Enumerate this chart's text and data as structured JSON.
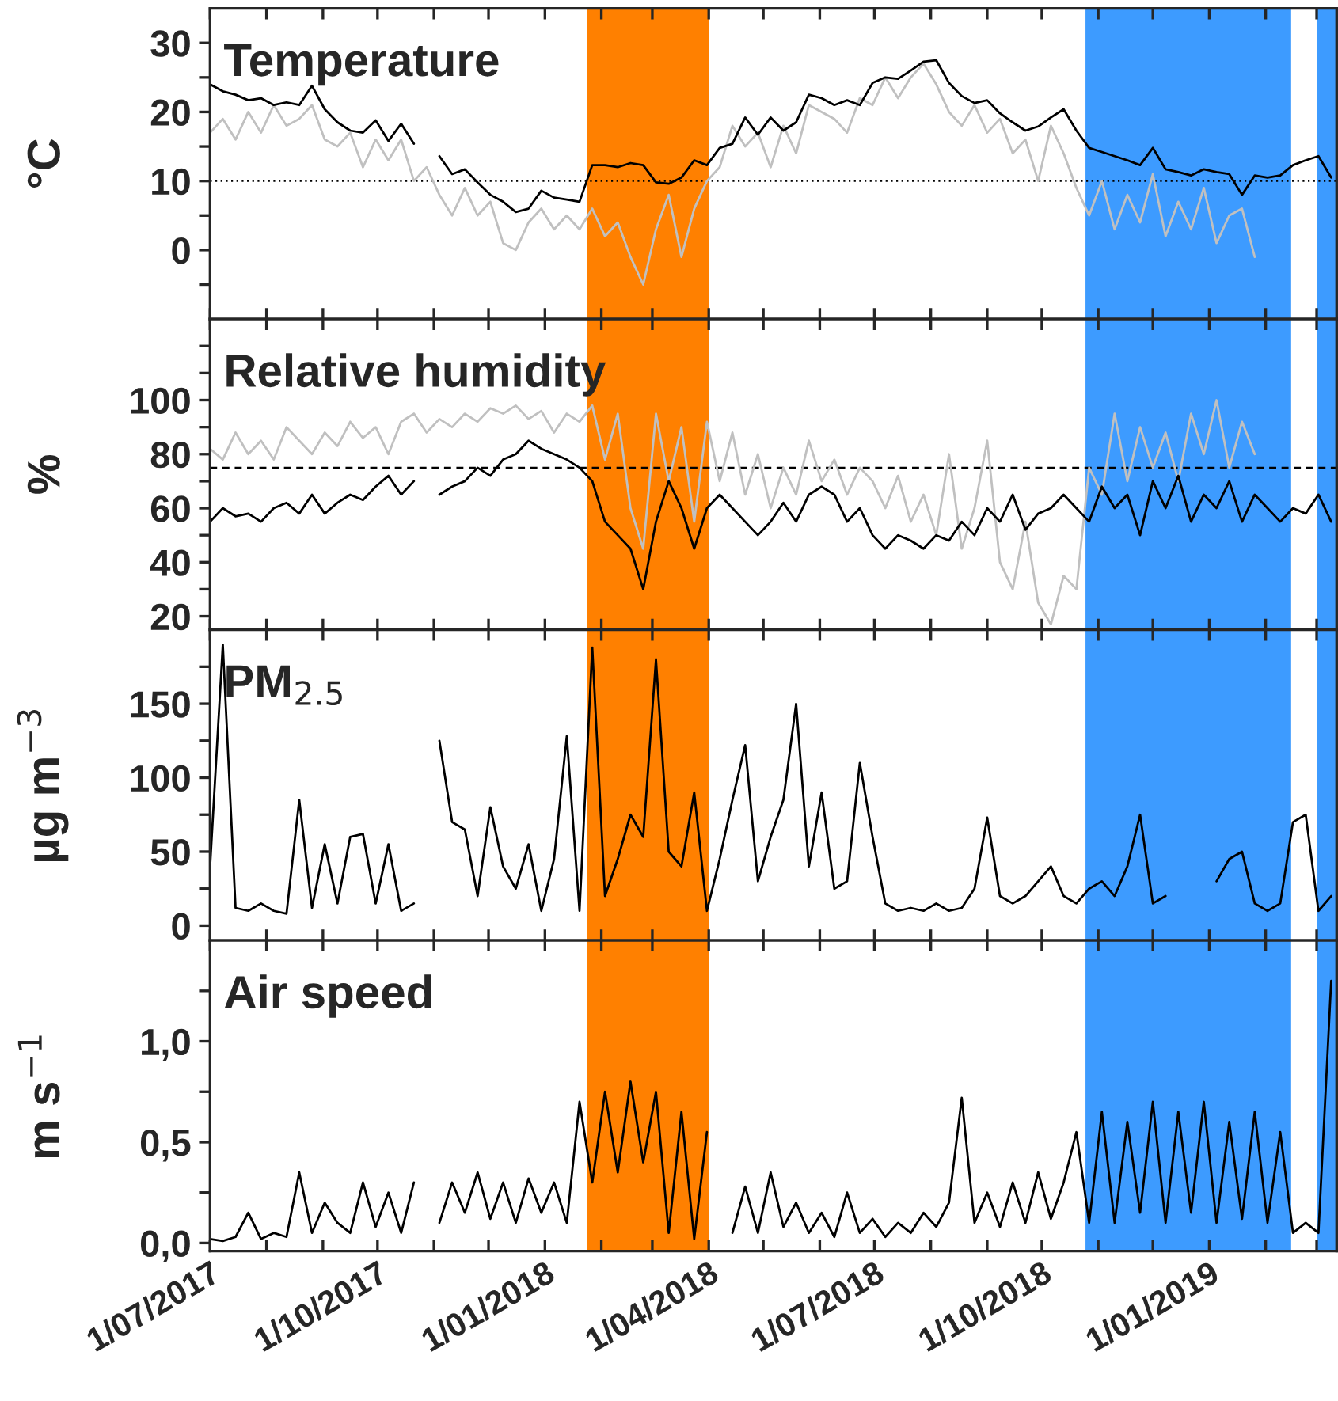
{
  "chart_data": [
    {
      "type": "line",
      "title": "Temperature",
      "ylabel": "°C",
      "x": [
        "2017-07-01",
        "2017-07-08",
        "2017-07-15",
        "2017-07-22",
        "2017-07-29",
        "2017-08-05",
        "2017-08-12",
        "2017-08-19",
        "2017-08-26",
        "2017-09-02",
        "2017-09-09",
        "2017-09-16",
        "2017-09-23",
        "2017-09-30",
        "2017-10-07",
        "2017-10-14",
        "2017-10-21",
        "2017-10-28",
        "2017-11-04",
        "2017-11-11",
        "2017-11-18",
        "2017-11-25",
        "2017-12-02",
        "2017-12-09",
        "2017-12-16",
        "2017-12-23",
        "2017-12-30",
        "2018-01-06",
        "2018-01-13",
        "2018-01-20",
        "2018-01-27",
        "2018-02-03",
        "2018-02-10",
        "2018-02-17",
        "2018-02-24",
        "2018-03-03",
        "2018-03-10",
        "2018-03-17",
        "2018-03-24",
        "2018-03-31",
        "2018-04-07",
        "2018-04-14",
        "2018-04-21",
        "2018-04-28",
        "2018-05-05",
        "2018-05-12",
        "2018-05-19",
        "2018-05-26",
        "2018-06-02",
        "2018-06-09",
        "2018-06-16",
        "2018-06-23",
        "2018-06-30",
        "2018-07-07",
        "2018-07-14",
        "2018-07-21",
        "2018-07-28",
        "2018-08-04",
        "2018-08-11",
        "2018-08-18",
        "2018-08-25",
        "2018-09-01",
        "2018-09-08",
        "2018-09-15",
        "2018-09-22",
        "2018-09-29",
        "2018-10-06",
        "2018-10-13",
        "2018-10-20",
        "2018-10-27",
        "2018-11-03",
        "2018-11-10",
        "2018-11-17",
        "2018-11-24",
        "2018-12-01",
        "2018-12-08",
        "2018-12-15",
        "2018-12-22",
        "2018-12-29",
        "2019-01-05",
        "2019-01-12",
        "2019-01-19",
        "2019-01-26",
        "2019-02-02",
        "2019-02-09",
        "2019-02-16",
        "2019-02-23",
        "2019-03-02",
        "2019-03-09"
      ],
      "series": [
        {
          "color": "#c0c0c0",
          "values": [
            17,
            19,
            16,
            20,
            17,
            21,
            18,
            19,
            21,
            16,
            15,
            17,
            12,
            16,
            13,
            16,
            10,
            12,
            8,
            5,
            9,
            5,
            7,
            1,
            0,
            4,
            6,
            3,
            5,
            3,
            6,
            2,
            4,
            -1,
            -5,
            3,
            8,
            -1,
            6,
            10,
            12,
            18,
            15,
            17,
            12,
            18,
            14,
            21,
            20,
            19,
            17,
            22,
            21,
            25,
            22,
            25,
            27,
            24,
            20,
            18,
            21,
            17,
            19,
            14,
            16,
            10,
            18,
            14,
            9,
            5,
            10,
            3,
            8,
            4,
            11,
            2,
            7,
            3,
            9,
            1,
            5,
            6,
            -1,
            null,
            null,
            null,
            null,
            null,
            null
          ]
        },
        {
          "color": "#000000",
          "values": [
            24,
            23,
            22.5,
            21.7,
            22,
            21,
            21.4,
            21,
            23.8,
            20.4,
            18.5,
            17.3,
            17,
            18.8,
            15.8,
            18.3,
            15.4,
            null,
            13.6,
            11,
            11.7,
            9.8,
            8,
            7,
            5.5,
            6,
            8.6,
            7.6,
            7.3,
            7,
            12.3,
            12.3,
            12,
            12.6,
            12.3,
            9.8,
            9.6,
            10.5,
            13,
            12.3,
            14.8,
            15.4,
            19.2,
            16.7,
            19.2,
            17.3,
            18.5,
            22.5,
            22,
            21,
            21.7,
            21,
            24.2,
            25,
            24.8,
            26,
            27.3,
            27.5,
            24.2,
            22.3,
            21.3,
            21.7,
            19.8,
            18.5,
            17.3,
            17.9,
            19.2,
            20.4,
            17.3,
            14.8,
            14.2,
            13.6,
            13,
            12.3,
            14.8,
            11.7,
            11.3,
            10.8,
            11.7,
            11.3,
            11,
            8,
            10.8,
            10.5,
            10.8,
            12.3,
            13,
            13.6,
            10.5
          ]
        }
      ],
      "ylim": [
        -10,
        35
      ],
      "yticks": [
        {
          "value": -5,
          "label": null
        },
        0,
        {
          "value": 5,
          "label": null
        },
        10,
        {
          "value": 15,
          "label": null
        },
        20,
        {
          "value": 25,
          "label": null
        },
        30
      ],
      "xlim": [
        "2017-07-01",
        "2019-03-12"
      ],
      "xticks": [
        {
          "value": "2017-07-01",
          "label": null
        },
        {
          "value": "2017-08-01",
          "label": null
        },
        {
          "value": "2017-09-01",
          "label": null
        },
        {
          "value": "2017-10-01",
          "label": null
        },
        {
          "value": "2017-11-01",
          "label": null
        },
        {
          "value": "2017-12-01",
          "label": null
        },
        {
          "value": "2018-01-01",
          "label": null
        },
        {
          "value": "2018-02-01",
          "label": null
        },
        {
          "value": "2018-03-01",
          "label": null
        },
        {
          "value": "2018-04-01",
          "label": null
        },
        {
          "value": "2018-05-01",
          "label": null
        },
        {
          "value": "2018-06-01",
          "label": null
        },
        {
          "value": "2018-07-01",
          "label": null
        },
        {
          "value": "2018-08-01",
          "label": null
        },
        {
          "value": "2018-09-01",
          "label": null
        },
        {
          "value": "2018-10-01",
          "label": null
        },
        {
          "value": "2018-11-01",
          "label": null
        },
        {
          "value": "2018-12-01",
          "label": null
        },
        {
          "value": "2019-01-01",
          "label": null
        },
        {
          "value": "2019-02-01",
          "label": null
        },
        {
          "value": "2019-03-01",
          "label": null
        }
      ],
      "tick_labels": "y",
      "ref_lines": [
        {
          "axis": "y",
          "value": 10,
          "color": "#000000",
          "line_style": "dotted"
        }
      ],
      "bands": [
        {
          "axis": "x",
          "from": "2018-01-24",
          "to": "2018-04-01",
          "color": "#ff8000"
        },
        {
          "axis": "x",
          "from": "2018-10-25",
          "to": "2019-02-15",
          "color": "#3d9bff"
        },
        {
          "axis": "x",
          "from": "2019-03-01",
          "to": "2019-03-12",
          "color": "#3d9bff"
        }
      ],
      "grid": false,
      "legend": false
    },
    {
      "type": "line",
      "title": "Relative humidity",
      "ylabel": "%",
      "x": [
        "2017-07-01",
        "2017-07-08",
        "2017-07-15",
        "2017-07-22",
        "2017-07-29",
        "2017-08-05",
        "2017-08-12",
        "2017-08-19",
        "2017-08-26",
        "2017-09-02",
        "2017-09-09",
        "2017-09-16",
        "2017-09-23",
        "2017-09-30",
        "2017-10-07",
        "2017-10-14",
        "2017-10-21",
        "2017-10-28",
        "2017-11-04",
        "2017-11-11",
        "2017-11-18",
        "2017-11-25",
        "2017-12-02",
        "2017-12-09",
        "2017-12-16",
        "2017-12-23",
        "2017-12-30",
        "2018-01-06",
        "2018-01-13",
        "2018-01-20",
        "2018-01-27",
        "2018-02-03",
        "2018-02-10",
        "2018-02-17",
        "2018-02-24",
        "2018-03-03",
        "2018-03-10",
        "2018-03-17",
        "2018-03-24",
        "2018-03-31",
        "2018-04-07",
        "2018-04-14",
        "2018-04-21",
        "2018-04-28",
        "2018-05-05",
        "2018-05-12",
        "2018-05-19",
        "2018-05-26",
        "2018-06-02",
        "2018-06-09",
        "2018-06-16",
        "2018-06-23",
        "2018-06-30",
        "2018-07-07",
        "2018-07-14",
        "2018-07-21",
        "2018-07-28",
        "2018-08-04",
        "2018-08-11",
        "2018-08-18",
        "2018-08-25",
        "2018-09-01",
        "2018-09-08",
        "2018-09-15",
        "2018-09-22",
        "2018-09-29",
        "2018-10-06",
        "2018-10-13",
        "2018-10-20",
        "2018-10-27",
        "2018-11-03",
        "2018-11-10",
        "2018-11-17",
        "2018-11-24",
        "2018-12-01",
        "2018-12-08",
        "2018-12-15",
        "2018-12-22",
        "2018-12-29",
        "2019-01-05",
        "2019-01-12",
        "2019-01-19",
        "2019-01-26",
        "2019-02-02",
        "2019-02-09",
        "2019-02-16",
        "2019-02-23",
        "2019-03-02",
        "2019-03-09"
      ],
      "series": [
        {
          "color": "#c0c0c0",
          "values": [
            82,
            78,
            88,
            80,
            85,
            78,
            90,
            85,
            80,
            88,
            83,
            92,
            86,
            90,
            80,
            92,
            95,
            88,
            93,
            90,
            95,
            92,
            97,
            95,
            98,
            93,
            96,
            88,
            95,
            92,
            98,
            78,
            95,
            60,
            45,
            95,
            70,
            90,
            55,
            92,
            70,
            88,
            65,
            80,
            60,
            75,
            65,
            85,
            70,
            78,
            65,
            75,
            70,
            60,
            72,
            55,
            65,
            50,
            80,
            45,
            60,
            85,
            40,
            30,
            55,
            25,
            17,
            35,
            30,
            75,
            65,
            95,
            70,
            90,
            75,
            88,
            70,
            95,
            80,
            100,
            75,
            92,
            80,
            null,
            null,
            null,
            null,
            null,
            null
          ]
        },
        {
          "color": "#000000",
          "values": [
            55,
            60,
            57,
            58,
            55,
            60,
            62,
            58,
            65,
            58,
            62,
            65,
            63,
            68,
            72,
            65,
            70,
            null,
            65,
            68,
            70,
            75,
            72,
            78,
            80,
            85,
            82,
            80,
            78,
            75,
            70,
            55,
            50,
            45,
            30,
            55,
            70,
            60,
            45,
            60,
            65,
            60,
            55,
            50,
            55,
            62,
            55,
            65,
            68,
            65,
            55,
            60,
            50,
            45,
            50,
            48,
            45,
            50,
            48,
            55,
            50,
            60,
            55,
            65,
            52,
            58,
            60,
            65,
            60,
            55,
            68,
            60,
            65,
            50,
            70,
            60,
            72,
            55,
            65,
            60,
            70,
            55,
            65,
            60,
            55,
            60,
            58,
            65,
            55
          ]
        }
      ],
      "ylim": [
        15,
        130
      ],
      "yticks": [
        20,
        {
          "value": 30,
          "label": null
        },
        40,
        {
          "value": 50,
          "label": null
        },
        60,
        {
          "value": 70,
          "label": null
        },
        80,
        {
          "value": 90,
          "label": null
        },
        100,
        {
          "value": 110,
          "label": null
        },
        {
          "value": 120,
          "label": null
        }
      ],
      "xlim": [
        "2017-07-01",
        "2019-03-12"
      ],
      "xticks": [
        {
          "value": "2017-07-01",
          "label": null
        },
        {
          "value": "2017-08-01",
          "label": null
        },
        {
          "value": "2017-09-01",
          "label": null
        },
        {
          "value": "2017-10-01",
          "label": null
        },
        {
          "value": "2017-11-01",
          "label": null
        },
        {
          "value": "2017-12-01",
          "label": null
        },
        {
          "value": "2018-01-01",
          "label": null
        },
        {
          "value": "2018-02-01",
          "label": null
        },
        {
          "value": "2018-03-01",
          "label": null
        },
        {
          "value": "2018-04-01",
          "label": null
        },
        {
          "value": "2018-05-01",
          "label": null
        },
        {
          "value": "2018-06-01",
          "label": null
        },
        {
          "value": "2018-07-01",
          "label": null
        },
        {
          "value": "2018-08-01",
          "label": null
        },
        {
          "value": "2018-09-01",
          "label": null
        },
        {
          "value": "2018-10-01",
          "label": null
        },
        {
          "value": "2018-11-01",
          "label": null
        },
        {
          "value": "2018-12-01",
          "label": null
        },
        {
          "value": "2019-01-01",
          "label": null
        },
        {
          "value": "2019-02-01",
          "label": null
        },
        {
          "value": "2019-03-01",
          "label": null
        }
      ],
      "tick_labels": "y",
      "ref_lines": [
        {
          "axis": "y",
          "value": 75,
          "color": "#000000",
          "line_style": "dashed"
        }
      ],
      "bands": [
        {
          "axis": "x",
          "from": "2018-01-24",
          "to": "2018-04-01",
          "color": "#ff8000"
        },
        {
          "axis": "x",
          "from": "2018-10-25",
          "to": "2019-02-15",
          "color": "#3d9bff"
        },
        {
          "axis": "x",
          "from": "2019-03-01",
          "to": "2019-03-12",
          "color": "#3d9bff"
        }
      ],
      "grid": false,
      "legend": false
    },
    {
      "type": "line",
      "title": "PM$_{2.5}$",
      "ylabel": "µg m$^{−3}$",
      "x": [
        "2017-07-01",
        "2017-07-08",
        "2017-07-15",
        "2017-07-22",
        "2017-07-29",
        "2017-08-05",
        "2017-08-12",
        "2017-08-19",
        "2017-08-26",
        "2017-09-02",
        "2017-09-09",
        "2017-09-16",
        "2017-09-23",
        "2017-09-30",
        "2017-10-07",
        "2017-10-14",
        "2017-10-21",
        "2017-10-28",
        "2017-11-04",
        "2017-11-11",
        "2017-11-18",
        "2017-11-25",
        "2017-12-02",
        "2017-12-09",
        "2017-12-16",
        "2017-12-23",
        "2017-12-30",
        "2018-01-06",
        "2018-01-13",
        "2018-01-20",
        "2018-01-27",
        "2018-02-03",
        "2018-02-10",
        "2018-02-17",
        "2018-02-24",
        "2018-03-03",
        "2018-03-10",
        "2018-03-17",
        "2018-03-24",
        "2018-03-31",
        "2018-04-07",
        "2018-04-14",
        "2018-04-21",
        "2018-04-28",
        "2018-05-05",
        "2018-05-12",
        "2018-05-19",
        "2018-05-26",
        "2018-06-02",
        "2018-06-09",
        "2018-06-16",
        "2018-06-23",
        "2018-06-30",
        "2018-07-07",
        "2018-07-14",
        "2018-07-21",
        "2018-07-28",
        "2018-08-04",
        "2018-08-11",
        "2018-08-18",
        "2018-08-25",
        "2018-09-01",
        "2018-09-08",
        "2018-09-15",
        "2018-09-22",
        "2018-09-29",
        "2018-10-06",
        "2018-10-13",
        "2018-10-20",
        "2018-10-27",
        "2018-11-03",
        "2018-11-10",
        "2018-11-17",
        "2018-11-24",
        "2018-12-01",
        "2018-12-08",
        "2018-12-15",
        "2018-12-22",
        "2018-12-29",
        "2019-01-05",
        "2019-01-12",
        "2019-01-19",
        "2019-01-26",
        "2019-02-02",
        "2019-02-09",
        "2019-02-16",
        "2019-02-23",
        "2019-03-02",
        "2019-03-09"
      ],
      "series": [
        {
          "color": "#000000",
          "values": [
            40,
            190,
            12,
            10,
            15,
            10,
            8,
            85,
            12,
            55,
            15,
            60,
            62,
            15,
            55,
            10,
            15,
            null,
            125,
            70,
            65,
            20,
            80,
            40,
            25,
            55,
            10,
            45,
            128,
            10,
            188,
            20,
            45,
            75,
            60,
            180,
            50,
            40,
            90,
            10,
            45,
            85,
            122,
            30,
            60,
            85,
            150,
            40,
            90,
            25,
            30,
            110,
            60,
            15,
            10,
            12,
            10,
            15,
            10,
            12,
            25,
            73,
            20,
            15,
            20,
            30,
            40,
            20,
            15,
            25,
            30,
            20,
            40,
            75,
            15,
            20,
            null,
            null,
            null,
            30,
            45,
            50,
            15,
            10,
            15,
            70,
            75,
            10,
            20
          ]
        }
      ],
      "ylim": [
        -10,
        200
      ],
      "yticks": [
        0,
        {
          "value": 25,
          "label": null
        },
        50,
        {
          "value": 75,
          "label": null
        },
        100,
        {
          "value": 125,
          "label": null
        },
        150,
        {
          "value": 175,
          "label": null
        }
      ],
      "xlim": [
        "2017-07-01",
        "2019-03-12"
      ],
      "xticks": [
        {
          "value": "2017-07-01",
          "label": null
        },
        {
          "value": "2017-08-01",
          "label": null
        },
        {
          "value": "2017-09-01",
          "label": null
        },
        {
          "value": "2017-10-01",
          "label": null
        },
        {
          "value": "2017-11-01",
          "label": null
        },
        {
          "value": "2017-12-01",
          "label": null
        },
        {
          "value": "2018-01-01",
          "label": null
        },
        {
          "value": "2018-02-01",
          "label": null
        },
        {
          "value": "2018-03-01",
          "label": null
        },
        {
          "value": "2018-04-01",
          "label": null
        },
        {
          "value": "2018-05-01",
          "label": null
        },
        {
          "value": "2018-06-01",
          "label": null
        },
        {
          "value": "2018-07-01",
          "label": null
        },
        {
          "value": "2018-08-01",
          "label": null
        },
        {
          "value": "2018-09-01",
          "label": null
        },
        {
          "value": "2018-10-01",
          "label": null
        },
        {
          "value": "2018-11-01",
          "label": null
        },
        {
          "value": "2018-12-01",
          "label": null
        },
        {
          "value": "2019-01-01",
          "label": null
        },
        {
          "value": "2019-02-01",
          "label": null
        },
        {
          "value": "2019-03-01",
          "label": null
        }
      ],
      "tick_labels": "y",
      "bands": [
        {
          "axis": "x",
          "from": "2018-01-24",
          "to": "2018-04-01",
          "color": "#ff8000"
        },
        {
          "axis": "x",
          "from": "2018-10-25",
          "to": "2019-02-15",
          "color": "#3d9bff"
        },
        {
          "axis": "x",
          "from": "2019-03-01",
          "to": "2019-03-12",
          "color": "#3d9bff"
        }
      ],
      "grid": false,
      "legend": false
    },
    {
      "type": "line",
      "title": "Air speed",
      "ylabel": "m s$^{−1}$",
      "x": [
        "2017-07-01",
        "2017-07-08",
        "2017-07-15",
        "2017-07-22",
        "2017-07-29",
        "2017-08-05",
        "2017-08-12",
        "2017-08-19",
        "2017-08-26",
        "2017-09-02",
        "2017-09-09",
        "2017-09-16",
        "2017-09-23",
        "2017-09-30",
        "2017-10-07",
        "2017-10-14",
        "2017-10-21",
        "2017-10-28",
        "2017-11-04",
        "2017-11-11",
        "2017-11-18",
        "2017-11-25",
        "2017-12-02",
        "2017-12-09",
        "2017-12-16",
        "2017-12-23",
        "2017-12-30",
        "2018-01-06",
        "2018-01-13",
        "2018-01-20",
        "2018-01-27",
        "2018-02-03",
        "2018-02-10",
        "2018-02-17",
        "2018-02-24",
        "2018-03-03",
        "2018-03-10",
        "2018-03-17",
        "2018-03-24",
        "2018-03-31",
        "2018-04-07",
        "2018-04-14",
        "2018-04-21",
        "2018-04-28",
        "2018-05-05",
        "2018-05-12",
        "2018-05-19",
        "2018-05-26",
        "2018-06-02",
        "2018-06-09",
        "2018-06-16",
        "2018-06-23",
        "2018-06-30",
        "2018-07-07",
        "2018-07-14",
        "2018-07-21",
        "2018-07-28",
        "2018-08-04",
        "2018-08-11",
        "2018-08-18",
        "2018-08-25",
        "2018-09-01",
        "2018-09-08",
        "2018-09-15",
        "2018-09-22",
        "2018-09-29",
        "2018-10-06",
        "2018-10-13",
        "2018-10-20",
        "2018-10-27",
        "2018-11-03",
        "2018-11-10",
        "2018-11-17",
        "2018-11-24",
        "2018-12-01",
        "2018-12-08",
        "2018-12-15",
        "2018-12-22",
        "2018-12-29",
        "2019-01-05",
        "2019-01-12",
        "2019-01-19",
        "2019-01-26",
        "2019-02-02",
        "2019-02-09",
        "2019-02-16",
        "2019-02-23",
        "2019-03-02",
        "2019-03-09"
      ],
      "series": [
        {
          "color": "#000000",
          "values": [
            0.02,
            0.01,
            0.03,
            0.15,
            0.02,
            0.05,
            0.03,
            0.35,
            0.05,
            0.2,
            0.1,
            0.05,
            0.3,
            0.08,
            0.25,
            0.05,
            0.3,
            null,
            0.1,
            0.3,
            0.15,
            0.35,
            0.12,
            0.3,
            0.1,
            0.32,
            0.15,
            0.3,
            0.1,
            0.7,
            0.3,
            0.75,
            0.35,
            0.8,
            0.4,
            0.75,
            0.05,
            0.65,
            0.02,
            0.55,
            null,
            0.05,
            0.28,
            0.05,
            0.35,
            0.08,
            0.2,
            0.05,
            0.15,
            0.03,
            0.25,
            0.05,
            0.12,
            0.03,
            0.1,
            0.05,
            0.15,
            0.08,
            0.2,
            0.72,
            0.1,
            0.25,
            0.08,
            0.3,
            0.1,
            0.35,
            0.12,
            0.3,
            0.55,
            0.1,
            0.65,
            0.1,
            0.6,
            0.15,
            0.7,
            0.1,
            0.65,
            0.15,
            0.7,
            0.1,
            0.6,
            0.12,
            0.65,
            0.1,
            0.55,
            0.05,
            0.1,
            0.05,
            1.3
          ]
        }
      ],
      "ylim": [
        -0.04,
        1.5
      ],
      "yticks": [
        {
          "value": 0,
          "label": "0,0"
        },
        {
          "value": 0.25,
          "label": null
        },
        {
          "value": 0.5,
          "label": "0,5"
        },
        {
          "value": 0.75,
          "label": null
        },
        {
          "value": 1.0,
          "label": "1,0"
        },
        {
          "value": 1.25,
          "label": null
        }
      ],
      "xlim": [
        "2017-07-01",
        "2019-03-12"
      ],
      "xticks": [
        {
          "value": "2017-07-01",
          "label": "1/07/2017"
        },
        {
          "value": "2017-08-01",
          "label": null
        },
        {
          "value": "2017-09-01",
          "label": null
        },
        {
          "value": "2017-10-01",
          "label": "1/10/2017"
        },
        {
          "value": "2017-11-01",
          "label": null
        },
        {
          "value": "2017-12-01",
          "label": null
        },
        {
          "value": "2018-01-01",
          "label": "1/01/2018"
        },
        {
          "value": "2018-02-01",
          "label": null
        },
        {
          "value": "2018-03-01",
          "label": null
        },
        {
          "value": "2018-04-01",
          "label": "1/04/2018"
        },
        {
          "value": "2018-05-01",
          "label": null
        },
        {
          "value": "2018-06-01",
          "label": null
        },
        {
          "value": "2018-07-01",
          "label": "1/07/2018"
        },
        {
          "value": "2018-08-01",
          "label": null
        },
        {
          "value": "2018-09-01",
          "label": null
        },
        {
          "value": "2018-10-01",
          "label": "1/10/2018"
        },
        {
          "value": "2018-11-01",
          "label": null
        },
        {
          "value": "2018-12-01",
          "label": null
        },
        {
          "value": "2019-01-01",
          "label": "1/01/2019"
        },
        {
          "value": "2019-02-01",
          "label": null
        },
        {
          "value": "2019-03-01",
          "label": null
        }
      ],
      "bands": [
        {
          "axis": "x",
          "from": "2018-01-24",
          "to": "2018-04-01",
          "color": "#ff8000"
        },
        {
          "axis": "x",
          "from": "2018-10-25",
          "to": "2019-02-15",
          "color": "#3d9bff"
        },
        {
          "axis": "x",
          "from": "2019-03-01",
          "to": "2019-03-12",
          "color": "#3d9bff"
        }
      ],
      "grid": false,
      "legend": false
    }
  ]
}
